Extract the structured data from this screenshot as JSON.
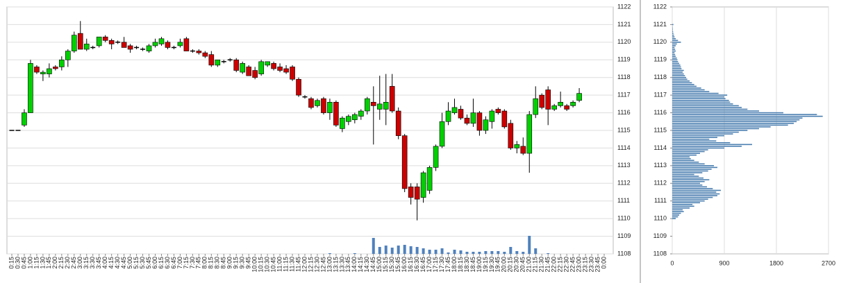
{
  "chart_data": [
    {
      "type": "candlestick",
      "categories": [
        "0:15",
        "0:30",
        "0:45",
        "1:00",
        "1:15",
        "1:30",
        "1:45",
        "2:00",
        "2:15",
        "2:30",
        "2:45",
        "3:00",
        "3:15",
        "3:30",
        "3:45",
        "4:00",
        "4:15",
        "4:30",
        "4:45",
        "5:00",
        "5:15",
        "5:30",
        "5:45",
        "6:00",
        "6:15",
        "6:30",
        "6:45",
        "7:00",
        "7:15",
        "7:30",
        "7:45",
        "8:00",
        "8:15",
        "8:30",
        "8:45",
        "9:00",
        "9:15",
        "9:30",
        "9:45",
        "10:00",
        "10:15",
        "10:30",
        "10:45",
        "11:00",
        "11:15",
        "11:30",
        "11:45",
        "12:00",
        "12:15",
        "12:30",
        "12:45",
        "13:00",
        "13:15",
        "13:30",
        "13:45",
        "14:00",
        "14:15",
        "14:30",
        "14:45",
        "15:00",
        "15:15",
        "15:30",
        "15:45",
        "16:00",
        "16:15",
        "16:30",
        "16:45",
        "17:00",
        "17:15",
        "17:30",
        "17:45",
        "18:00",
        "18:15",
        "18:30",
        "18:45",
        "19:00",
        "19:15",
        "19:30",
        "19:45",
        "20:00",
        "20:15",
        "20:30",
        "20:45",
        "21:00",
        "21:15",
        "21:30",
        "21:45",
        "22:00",
        "22:15",
        "22:30",
        "22:45",
        "23:00",
        "23:15",
        "23:30",
        "23:45",
        "0:00"
      ],
      "open": [
        1115,
        1115,
        1115.3,
        1116,
        1118.6,
        1118.2,
        1118.2,
        1118.6,
        1118.6,
        1119.0,
        1119.5,
        1120.5,
        1119.6,
        1119.7,
        1119.8,
        1120.3,
        1120.1,
        1120.0,
        1120.0,
        1119.8,
        1119.7,
        1119.6,
        1119.5,
        1119.8,
        1119.9,
        1120.0,
        1119.7,
        1119.8,
        1120.2,
        1119.5,
        1119.5,
        1119.4,
        1119.3,
        1118.7,
        1118.9,
        1119.0,
        1119.0,
        1118.3,
        1118.6,
        1118.4,
        1118.2,
        1118.7,
        1118.8,
        1118.6,
        1118.5,
        1118.6,
        1117.9,
        1116.9,
        1116.8,
        1116.4,
        1116.8,
        1116.0,
        1116.6,
        1115.1,
        1115.5,
        1115.6,
        1115.8,
        1116.1,
        1116.6,
        1116.2,
        1116.2,
        1117.5,
        1116.1,
        1114.7,
        1111.8,
        1111.8,
        1111.2,
        1111.6,
        1112.9,
        1114.1,
        1115.5,
        1116.0,
        1116.2,
        1115.7,
        1115.4,
        1116.0,
        1115.0,
        1115.5,
        1116.2,
        1116.1,
        1115.4,
        1114.0,
        1114.1,
        1113.7,
        1115.9,
        1117.0,
        1117.3,
        1116.2,
        1116.4,
        1116.4,
        1116.4,
        1116.7,
        null,
        null,
        null,
        null
      ],
      "high": [
        1115,
        1115,
        1116.2,
        1119,
        1118.7,
        1118.4,
        1118.8,
        1118.7,
        1119.2,
        1119.6,
        1120.6,
        1121.2,
        1120.2,
        1119.8,
        1120.3,
        1120.4,
        1120.2,
        1120.1,
        1120.3,
        1119.9,
        1119.8,
        1119.7,
        1119.9,
        1120.2,
        1120.3,
        1120.1,
        1119.8,
        1120.2,
        1120.3,
        1119.6,
        1119.6,
        1119.5,
        1119.5,
        1119.0,
        1119.0,
        1119.1,
        1119.1,
        1118.9,
        1118.7,
        1118.6,
        1119.0,
        1118.9,
        1118.9,
        1118.8,
        1118.7,
        1118.7,
        1118.0,
        1117.0,
        1116.9,
        1116.8,
        1116.9,
        1116.8,
        1116.7,
        1115.8,
        1115.9,
        1116.0,
        1116.2,
        1116.9,
        1117.5,
        1118.1,
        1118.2,
        1118.2,
        1116.3,
        1114.8,
        1112.0,
        1112.0,
        1112.7,
        1113.0,
        1114.2,
        1116.0,
        1116.6,
        1116.8,
        1116.4,
        1115.9,
        1116.8,
        1116.1,
        1115.8,
        1116.2,
        1116.3,
        1116.2,
        1115.6,
        1114.4,
        1114.6,
        1116.1,
        1117.5,
        1117.1,
        1117.5,
        1116.5,
        1117.2,
        1116.5,
        1116.7,
        1117.4,
        null,
        null,
        null,
        null
      ],
      "low": [
        1115,
        1115,
        1115.2,
        1116,
        1118.2,
        1117.8,
        1118.0,
        1118.4,
        1118.4,
        1118.6,
        1119.4,
        1119.6,
        1119.5,
        1119.6,
        1119.7,
        1120.0,
        1119.6,
        1119.9,
        1119.7,
        1119.4,
        1119.6,
        1119.5,
        1119.4,
        1119.7,
        1119.8,
        1119.6,
        1119.6,
        1119.7,
        1119.5,
        1119.4,
        1119.3,
        1119.1,
        1118.6,
        1118.6,
        1118.8,
        1118.9,
        1118.3,
        1118.2,
        1118.1,
        1117.9,
        1118.1,
        1118.6,
        1118.4,
        1118.3,
        1118.2,
        1117.8,
        1116.9,
        1116.8,
        1116.2,
        1116.3,
        1115.9,
        1115.6,
        1115.2,
        1114.9,
        1115.3,
        1115.4,
        1115.6,
        1115.9,
        1114.2,
        1115.6,
        1115.3,
        1116.0,
        1114.5,
        1111.5,
        1110.8,
        1109.9,
        1110.9,
        1111.4,
        1112.7,
        1114.0,
        1115.3,
        1115.9,
        1115.6,
        1115.3,
        1115.2,
        1114.7,
        1114.8,
        1115.1,
        1115.9,
        1115.1,
        1113.9,
        1113.7,
        1113.6,
        1112.6,
        1115.7,
        1116.2,
        1115.3,
        1116.1,
        1116.3,
        1116.1,
        1116.3,
        1116.6,
        null,
        null,
        null,
        null
      ],
      "close": [
        1115,
        1115,
        1116.0,
        1118.8,
        1118.3,
        1118.3,
        1118.5,
        1118.5,
        1119.0,
        1119.5,
        1120.4,
        1119.6,
        1119.9,
        1119.7,
        1120.3,
        1120.1,
        1119.9,
        1120.0,
        1119.7,
        1119.6,
        1119.7,
        1119.6,
        1119.8,
        1120.0,
        1120.2,
        1119.7,
        1119.7,
        1120.0,
        1119.5,
        1119.5,
        1119.4,
        1119.2,
        1118.7,
        1119.0,
        1118.9,
        1119.0,
        1118.4,
        1118.8,
        1118.1,
        1118.0,
        1118.9,
        1118.9,
        1118.5,
        1118.4,
        1118.3,
        1117.9,
        1117.0,
        1116.9,
        1116.3,
        1116.7,
        1116.0,
        1116.6,
        1115.3,
        1115.7,
        1115.8,
        1115.9,
        1116.1,
        1116.8,
        1116.4,
        1116.5,
        1116.6,
        1116.1,
        1114.7,
        1111.7,
        1111.2,
        1111.1,
        1112.6,
        1112.9,
        1114.1,
        1115.5,
        1116.1,
        1116.3,
        1115.7,
        1115.4,
        1116.0,
        1115.0,
        1115.6,
        1116.1,
        1116.0,
        1115.2,
        1114.0,
        1114.2,
        1113.7,
        1115.9,
        1116.8,
        1116.3,
        1116.2,
        1116.4,
        1116.6,
        1116.2,
        1116.6,
        1117.1,
        null,
        null,
        null,
        null
      ],
      "volume": [
        0,
        0,
        0,
        0,
        0,
        0,
        0,
        0,
        0,
        0,
        0,
        0,
        0,
        0,
        0,
        0,
        0,
        0,
        0,
        0,
        0,
        0,
        0,
        0,
        0,
        0,
        0,
        0,
        0,
        0,
        0,
        0,
        0,
        0,
        0,
        0,
        0,
        0,
        0,
        0,
        0,
        0,
        0,
        0,
        0,
        0,
        0,
        0,
        0,
        0,
        0,
        1,
        0,
        0,
        0,
        1,
        0,
        0,
        23,
        10,
        12,
        9,
        12,
        13,
        11,
        10,
        8,
        6,
        6,
        8,
        2,
        6,
        5,
        3,
        3,
        3,
        4,
        4,
        4,
        3,
        10,
        4,
        3,
        26,
        8,
        0,
        1,
        0,
        0,
        0,
        0,
        0,
        0,
        0,
        0,
        0
      ],
      "up_color": "#00d000",
      "down_color": "#cc0000",
      "volume_color": "#4f81bd",
      "ylim": [
        1108,
        1122
      ],
      "yticks": [
        1108,
        1109,
        1110,
        1111,
        1112,
        1113,
        1114,
        1115,
        1116,
        1117,
        1118,
        1119,
        1120,
        1121,
        1122
      ],
      "grid": true
    },
    {
      "type": "profile",
      "y": [
        1110.0,
        1110.1,
        1110.2,
        1110.3,
        1110.4,
        1110.5,
        1110.6,
        1110.7,
        1110.8,
        1110.9,
        1111.0,
        1111.1,
        1111.2,
        1111.3,
        1111.4,
        1111.5,
        1111.6,
        1111.7,
        1111.8,
        1111.9,
        1112.0,
        1112.1,
        1112.2,
        1112.3,
        1112.4,
        1112.5,
        1112.6,
        1112.7,
        1112.8,
        1112.9,
        1113.0,
        1113.1,
        1113.2,
        1113.3,
        1113.4,
        1113.5,
        1113.6,
        1113.7,
        1113.8,
        1113.9,
        1114.0,
        1114.1,
        1114.2,
        1114.3,
        1114.4,
        1114.5,
        1114.6,
        1114.7,
        1114.8,
        1114.9,
        1115.0,
        1115.1,
        1115.2,
        1115.3,
        1115.4,
        1115.5,
        1115.6,
        1115.7,
        1115.8,
        1115.9,
        1116.0,
        1116.1,
        1116.2,
        1116.3,
        1116.4,
        1116.5,
        1116.6,
        1116.7,
        1116.8,
        1116.9,
        1117.0,
        1117.1,
        1117.2,
        1117.3,
        1117.4,
        1117.5,
        1117.6,
        1117.7,
        1117.8,
        1117.9,
        1118.0,
        1118.1,
        1118.2,
        1118.3,
        1118.4,
        1118.5,
        1118.6,
        1118.7,
        1118.8,
        1118.9,
        1119.0,
        1119.1,
        1119.2,
        1119.3,
        1119.4,
        1119.5,
        1119.6,
        1119.7,
        1119.8,
        1119.9,
        1120.0,
        1120.1,
        1120.2,
        1120.3,
        1120.4,
        1120.5,
        1120.6,
        1120.7,
        1120.8,
        1120.9,
        1121.0
      ],
      "values": [
        60,
        100,
        120,
        150,
        200,
        180,
        300,
        380,
        350,
        480,
        560,
        620,
        700,
        780,
        820,
        760,
        840,
        700,
        600,
        520,
        480,
        560,
        640,
        540,
        460,
        380,
        520,
        620,
        680,
        780,
        720,
        560,
        460,
        380,
        320,
        300,
        420,
        480,
        560,
        620,
        900,
        1200,
        1380,
        1000,
        760,
        640,
        780,
        900,
        1050,
        1150,
        1300,
        1500,
        1700,
        2000,
        2100,
        2150,
        2200,
        2250,
        2600,
        2500,
        1920,
        1500,
        1300,
        1200,
        1150,
        1050,
        1000,
        980,
        920,
        900,
        950,
        800,
        640,
        560,
        500,
        420,
        380,
        340,
        300,
        260,
        240,
        220,
        200,
        180,
        200,
        160,
        150,
        140,
        120,
        100,
        90,
        80,
        60,
        50,
        40,
        60,
        50,
        40,
        60,
        80,
        150,
        100,
        60,
        40,
        30,
        20,
        15,
        10,
        10,
        5,
        20
      ],
      "color": "#4a7eb0",
      "xlim": [
        0,
        2700
      ],
      "xticks": [
        0,
        900,
        1800,
        2700
      ],
      "ylim": [
        1108,
        1122
      ],
      "yticks": [
        1108,
        1109,
        1110,
        1111,
        1112,
        1113,
        1114,
        1115,
        1116,
        1117,
        1118,
        1119,
        1120,
        1121,
        1122
      ],
      "grid": true
    }
  ]
}
